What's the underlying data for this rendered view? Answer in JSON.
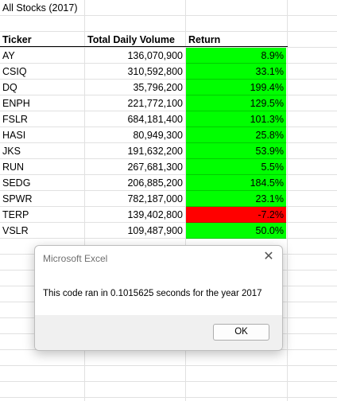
{
  "sheet": {
    "title": "All Stocks (2017)",
    "headers": {
      "ticker": "Ticker",
      "volume": "Total Daily Volume",
      "return": "Return"
    },
    "rows": [
      {
        "ticker": "AY",
        "volume": "136,070,900",
        "return": "8.9%",
        "positive": true
      },
      {
        "ticker": "CSIQ",
        "volume": "310,592,800",
        "return": "33.1%",
        "positive": true
      },
      {
        "ticker": "DQ",
        "volume": "35,796,200",
        "return": "199.4%",
        "positive": true
      },
      {
        "ticker": "ENPH",
        "volume": "221,772,100",
        "return": "129.5%",
        "positive": true
      },
      {
        "ticker": "FSLR",
        "volume": "684,181,400",
        "return": "101.3%",
        "positive": true
      },
      {
        "ticker": "HASI",
        "volume": "80,949,300",
        "return": "25.8%",
        "positive": true
      },
      {
        "ticker": "JKS",
        "volume": "191,632,200",
        "return": "53.9%",
        "positive": true
      },
      {
        "ticker": "RUN",
        "volume": "267,681,300",
        "return": "5.5%",
        "positive": true
      },
      {
        "ticker": "SEDG",
        "volume": "206,885,200",
        "return": "184.5%",
        "positive": true
      },
      {
        "ticker": "SPWR",
        "volume": "782,187,000",
        "return": "23.1%",
        "positive": true
      },
      {
        "ticker": "TERP",
        "volume": "139,402,800",
        "return": "-7.2%",
        "positive": false
      },
      {
        "ticker": "VSLR",
        "volume": "109,487,900",
        "return": "50.0%",
        "positive": true
      }
    ],
    "colors": {
      "positive": "#00ff00",
      "negative": "#ff0000"
    }
  },
  "dialog": {
    "title": "Microsoft Excel",
    "message": "This code ran in 0.1015625 seconds for the year 2017",
    "ok_label": "OK",
    "close_icon": "close-icon"
  }
}
